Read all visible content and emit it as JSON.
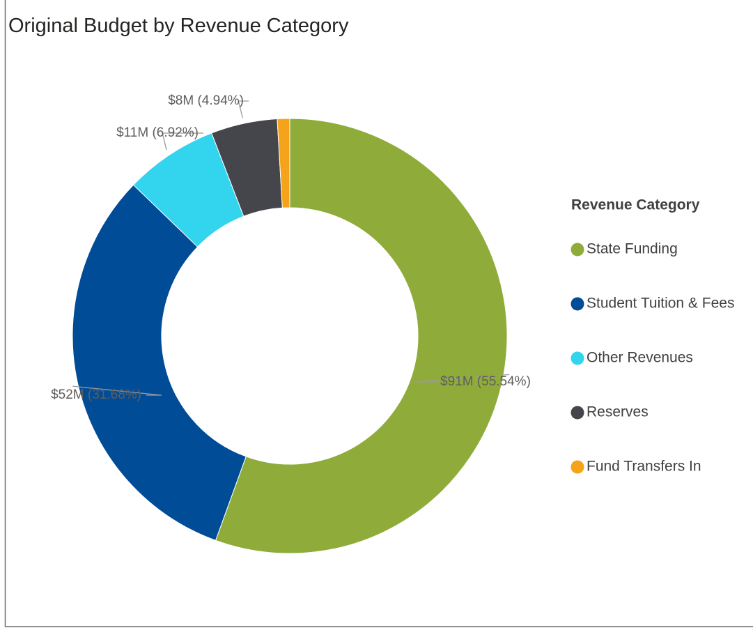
{
  "chart_data": {
    "type": "donut",
    "title": "Original Budget by Revenue Category",
    "legend_title": "Revenue Category",
    "legend_position": "right",
    "categories": [
      "State Funding",
      "Student Tuition & Fees",
      "Other Revenues",
      "Reserves",
      "Fund Transfers In"
    ],
    "values": [
      55.54,
      31.68,
      6.92,
      4.94,
      0.92
    ],
    "value_labels": [
      "$91M (55.54%)",
      "$52M (31.68%)",
      "$11M (6.92%)",
      "$8M (4.94%)",
      null
    ],
    "colors": [
      "#8fac3b",
      "#004c97",
      "#33d4ee",
      "#45464b",
      "#f5a31a"
    ]
  }
}
